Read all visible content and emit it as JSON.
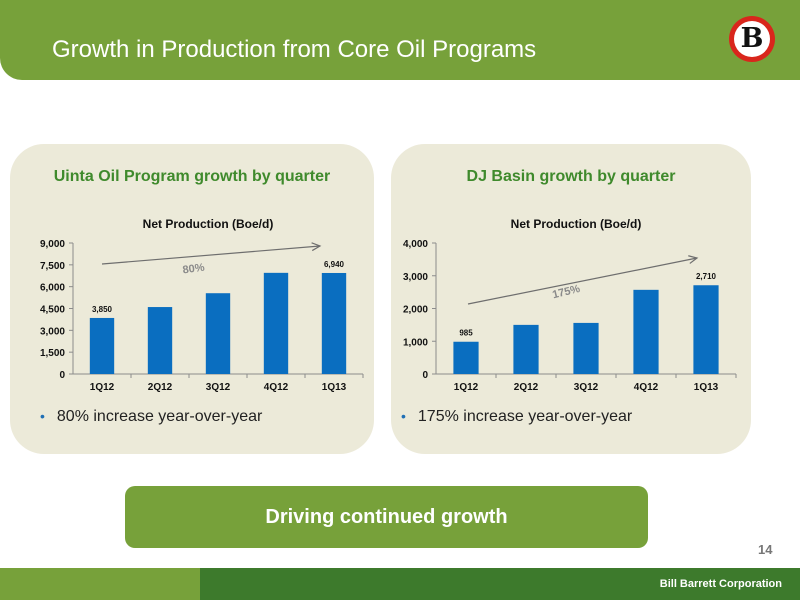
{
  "title": "Growth in Production from Core Oil Programs",
  "logo": {
    "letter": "B"
  },
  "panels": [
    {
      "title": "Uinta Oil Program growth by quarter",
      "bullet": "80% increase year-over-year"
    },
    {
      "title": "DJ Basin growth by quarter",
      "bullet": "175% increase year-over-year"
    }
  ],
  "cta": "Driving continued growth",
  "page_number": "14",
  "footer": "Bill Barrett Corporation",
  "colors": {
    "brand_green": "#77a13a",
    "dark_green": "#3d7a2c",
    "panel_bg": "#ecead9",
    "bar": "#0a6ec0",
    "title_green": "#3f8a2c"
  },
  "chart_data": [
    {
      "type": "bar",
      "title": "Net Production (Boe/d)",
      "categories": [
        "1Q12",
        "2Q12",
        "3Q12",
        "4Q12",
        "1Q13"
      ],
      "values": [
        3850,
        4600,
        5550,
        6950,
        6940
      ],
      "data_labels": {
        "0": "3,850",
        "4": "6,940"
      },
      "ylim": [
        0,
        9000
      ],
      "yticks": [
        0,
        1500,
        3000,
        4500,
        6000,
        7500,
        9000
      ],
      "ytick_labels": [
        "0",
        "1,500",
        "3,000",
        "4,500",
        "6,000",
        "7,500",
        "9,000"
      ],
      "grid": false,
      "annotation": "80%"
    },
    {
      "type": "bar",
      "title": "Net Production (Boe/d)",
      "categories": [
        "1Q12",
        "2Q12",
        "3Q12",
        "4Q12",
        "1Q13"
      ],
      "values": [
        985,
        1500,
        1560,
        2570,
        2710
      ],
      "data_labels": {
        "0": "985",
        "4": "2,710"
      },
      "ylim": [
        0,
        4000
      ],
      "yticks": [
        0,
        1000,
        2000,
        3000,
        4000
      ],
      "ytick_labels": [
        "0",
        "1,000",
        "2,000",
        "3,000",
        "4,000"
      ],
      "grid": false,
      "annotation": "175%"
    }
  ]
}
